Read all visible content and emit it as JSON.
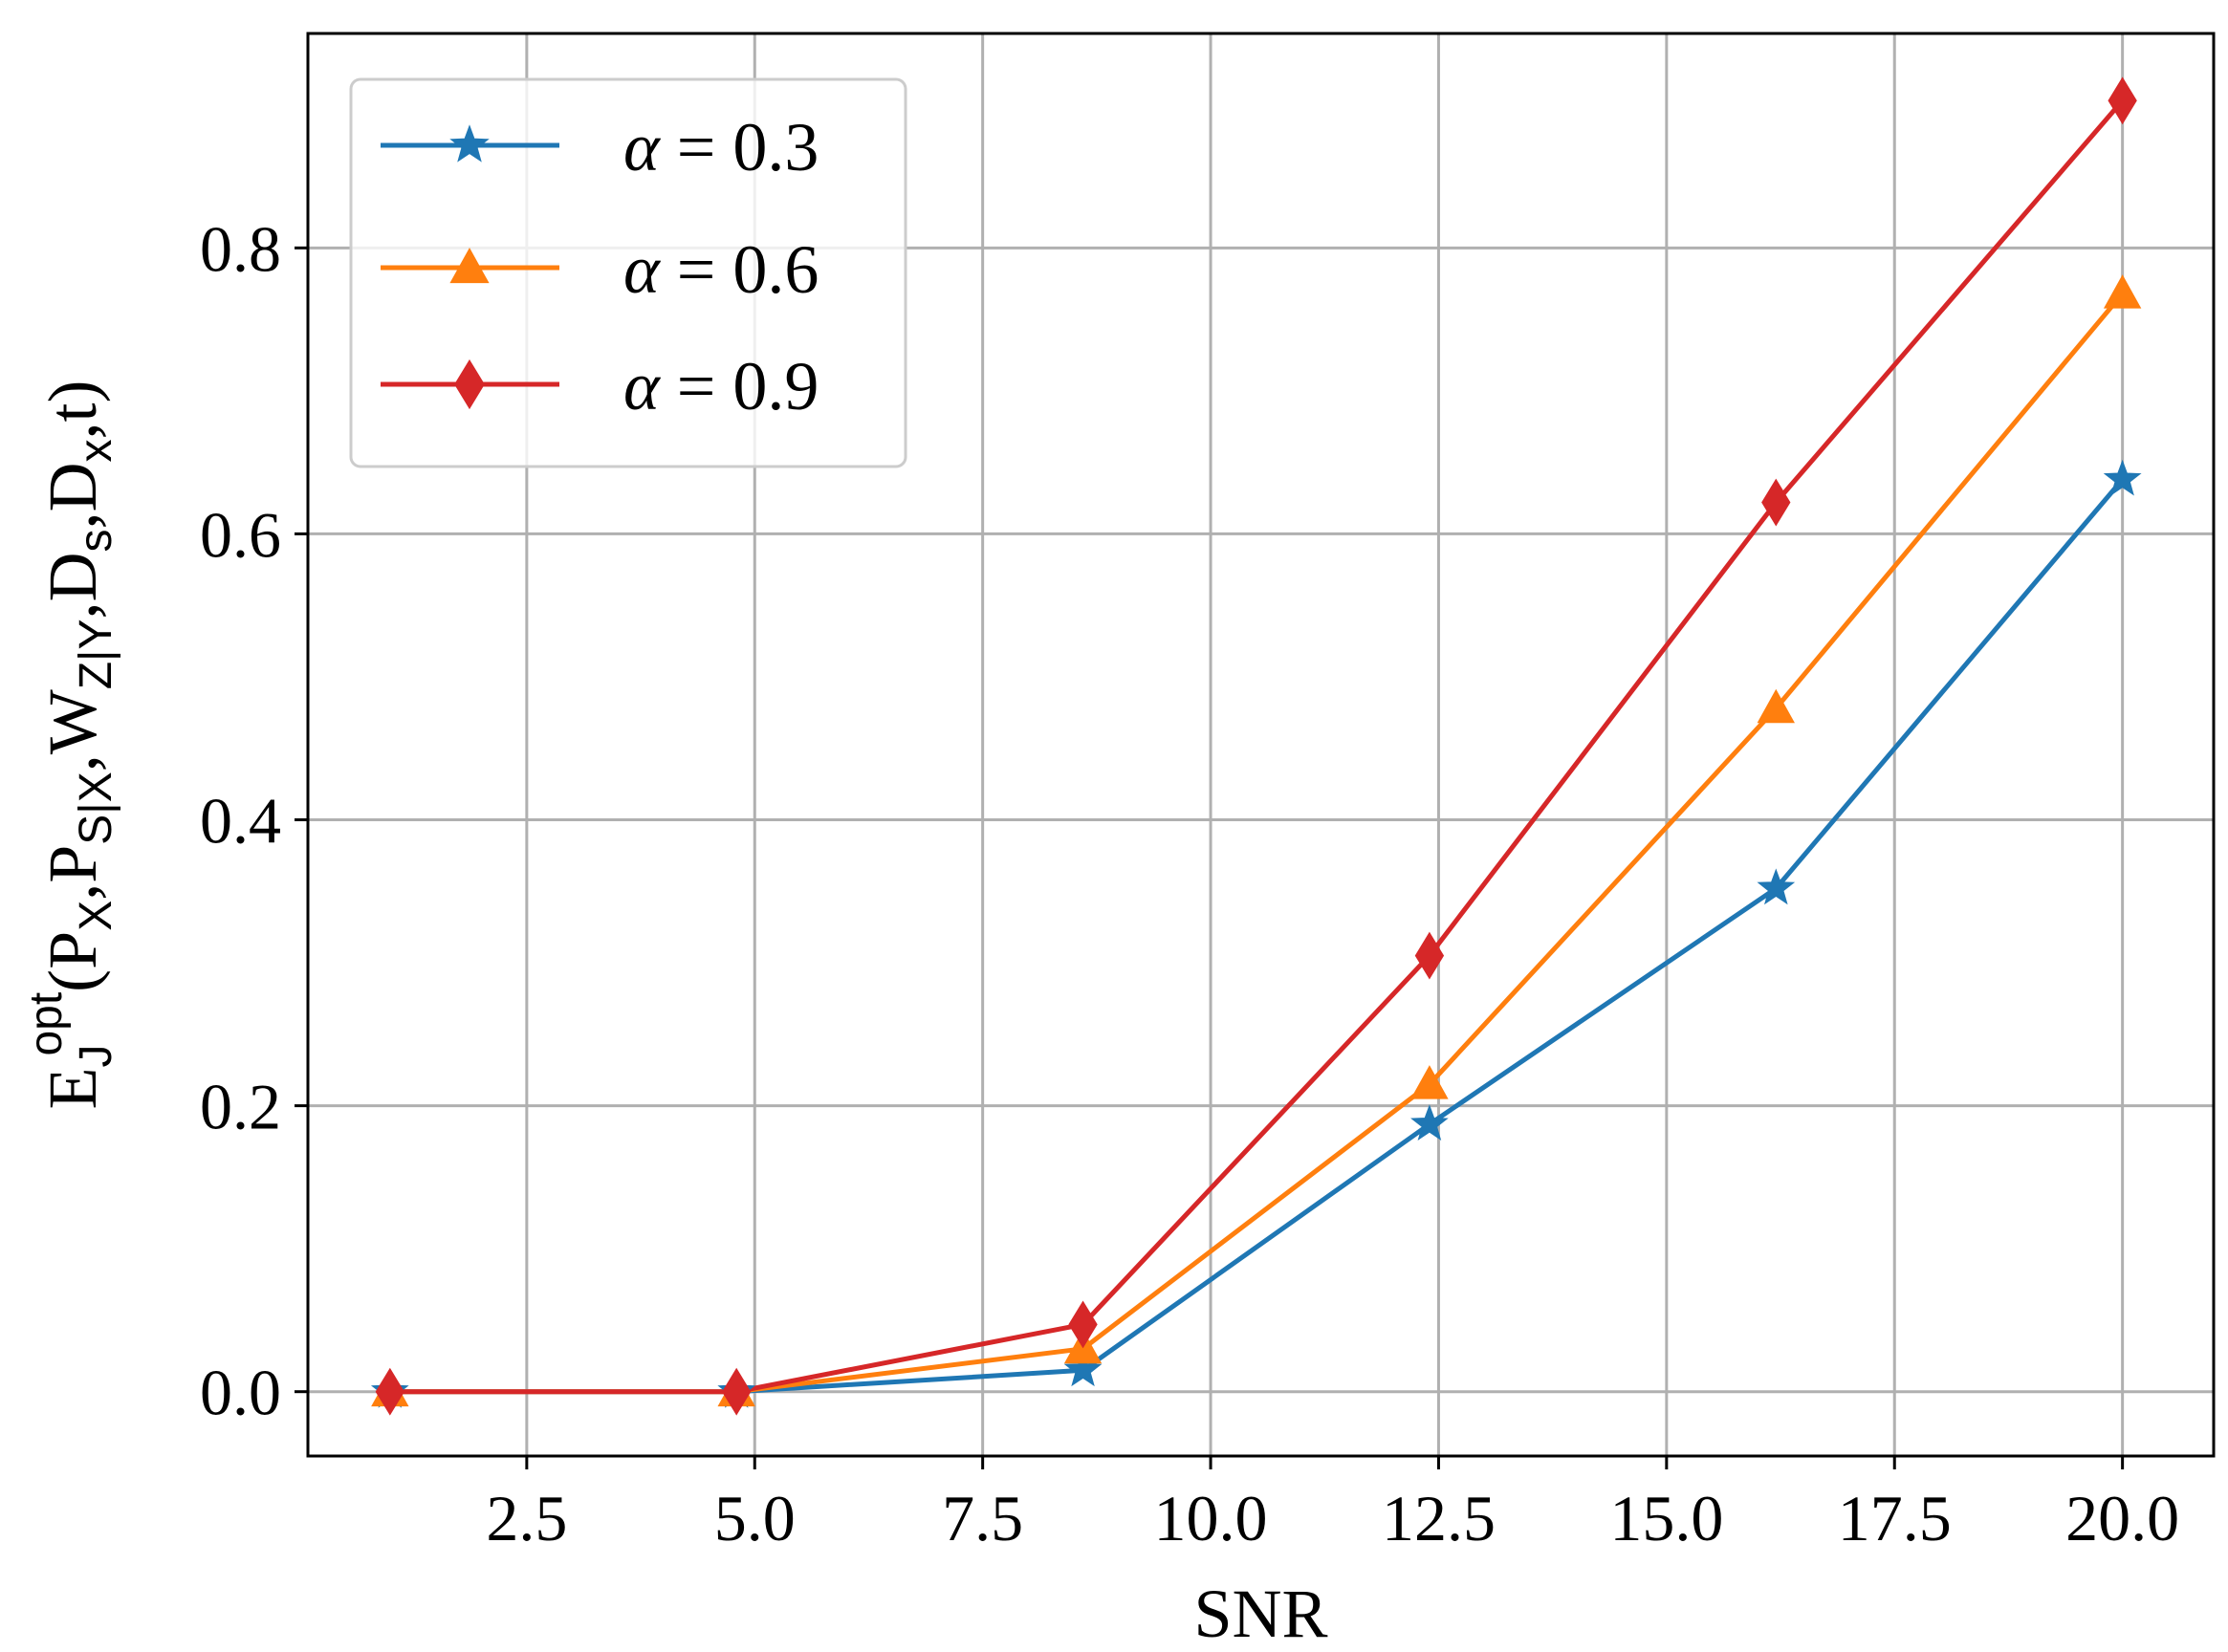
{
  "chart_data": {
    "type": "line",
    "title": "",
    "xlabel": "SNR",
    "ylabel": {
      "main": "E",
      "sub": "J",
      "sup": "opt",
      "args": [
        {
          "t": "(P"
        },
        {
          "t": "X",
          "sub": true
        },
        {
          "t": ",P"
        },
        {
          "t": "S|X",
          "sub": true
        },
        {
          "t": ",W"
        },
        {
          "t": "Z|Y",
          "sub": true
        },
        {
          "t": ",D"
        },
        {
          "t": "s",
          "sub": true
        },
        {
          "t": ",D"
        },
        {
          "t": "x",
          "sub": true
        },
        {
          "t": ",t)"
        }
      ]
    },
    "xlim": [
      0.1,
      21.0
    ],
    "ylim": [
      -0.045,
      0.95
    ],
    "xticks": [
      2.5,
      5.0,
      7.5,
      10.0,
      12.5,
      15.0,
      17.5,
      20.0
    ],
    "xtick_labels": [
      "2.5",
      "5.0",
      "7.5",
      "10.0",
      "12.5",
      "15.0",
      "17.5",
      "20.0"
    ],
    "yticks": [
      0.0,
      0.2,
      0.4,
      0.6,
      0.8
    ],
    "ytick_labels": [
      "0.0",
      "0.2",
      "0.4",
      "0.6",
      "0.8"
    ],
    "grid": true,
    "legend_position": "top-left",
    "x": [
      1.0,
      4.8,
      8.6,
      12.4,
      16.2,
      20.0
    ],
    "series": [
      {
        "name": "α = 0.3",
        "symbol": "α",
        "label_rest": " = 0.3",
        "color": "#1f77b4",
        "marker": "star",
        "values": [
          0.0,
          0.0,
          0.015,
          0.187,
          0.352,
          0.638
        ]
      },
      {
        "name": "α = 0.6",
        "symbol": "α",
        "label_rest": " = 0.6",
        "color": "#ff7f0e",
        "marker": "triangle",
        "values": [
          0.0,
          0.0,
          0.03,
          0.215,
          0.478,
          0.768
        ]
      },
      {
        "name": "α = 0.9",
        "symbol": "α",
        "label_rest": " = 0.9",
        "color": "#d62728",
        "marker": "diamond",
        "values": [
          0.0,
          0.0,
          0.047,
          0.305,
          0.622,
          0.903
        ]
      }
    ]
  }
}
